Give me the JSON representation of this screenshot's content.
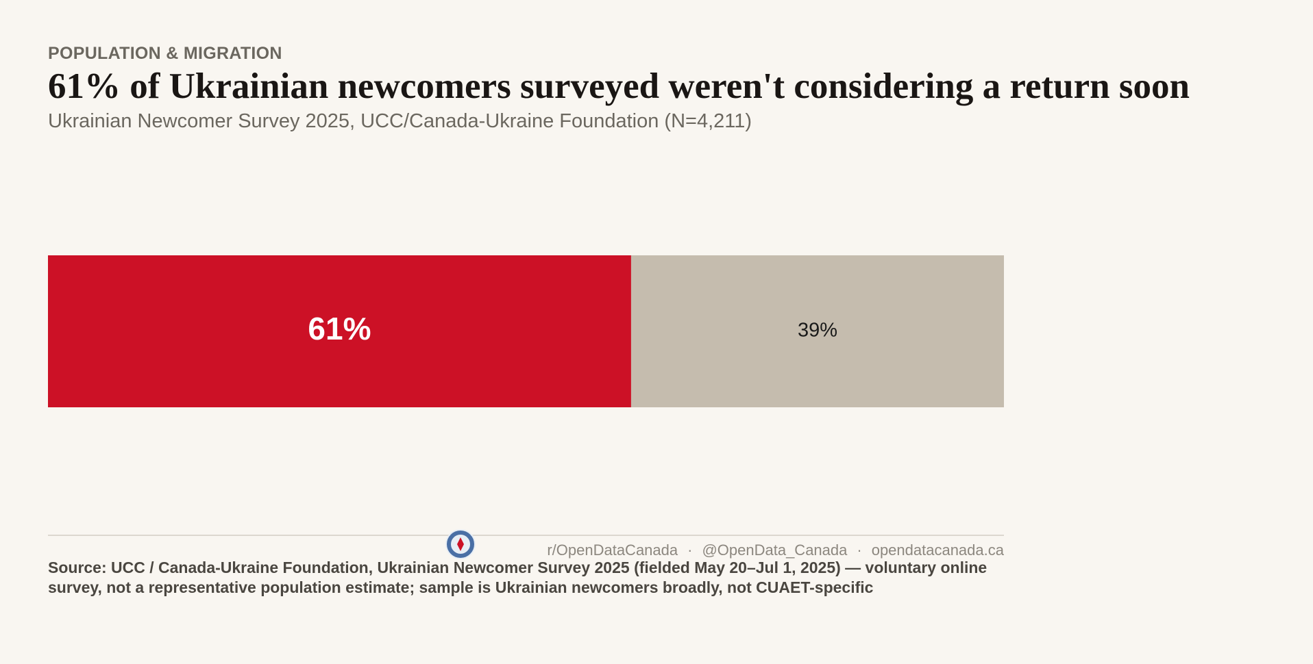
{
  "header": {
    "kicker": "POPULATION & MIGRATION",
    "title": "61% of Ukrainian newcomers surveyed weren't considering a return soon",
    "subtitle": "Ukrainian Newcomer Survey 2025, UCC/Canada-Ukraine Foundation (N=4,211)"
  },
  "chart_data": {
    "type": "stacked_bar",
    "values": [
      61,
      39
    ],
    "value_labels": [
      "61%",
      "39%"
    ],
    "colors": [
      "#cc1126",
      "#c5bcae"
    ],
    "label_colors": [
      "#ffffff",
      "#1a1a1a"
    ]
  },
  "footer": {
    "links": [
      "r/OpenDataCanada",
      "@OpenData_Canada",
      "opendatacanada.ca"
    ],
    "separator": "·",
    "source": "Source: UCC / Canada-Ukraine Foundation, Ukrainian Newcomer Survey 2025 (fielded May 20–Jul 1, 2025) — voluntary online survey, not a representative population estimate; sample is Ukrainian newcomers broadly, not CUAET-specific"
  }
}
